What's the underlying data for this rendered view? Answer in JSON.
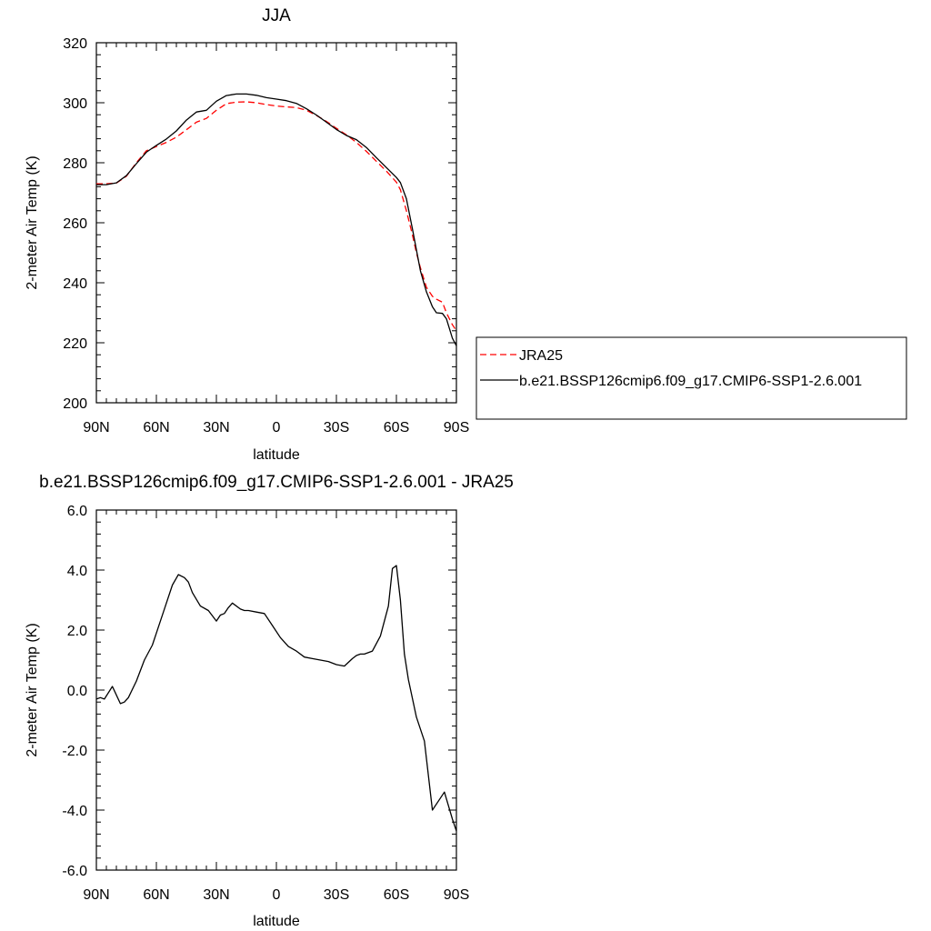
{
  "chart_data": [
    {
      "type": "line",
      "title": "JJA",
      "xlabel": "latitude",
      "ylabel": "2-meter Air Temp (K)",
      "xlim": [
        90,
        -90
      ],
      "ylim": [
        200,
        320
      ],
      "x_ticks": [
        90,
        60,
        30,
        0,
        -30,
        -60,
        -90
      ],
      "x_tick_labels": [
        "90N",
        "60N",
        "30N",
        "0",
        "30S",
        "60S",
        "90S"
      ],
      "y_ticks": [
        200,
        220,
        240,
        260,
        280,
        300,
        320
      ],
      "y_tick_labels": [
        "200",
        "220",
        "240",
        "260",
        "280",
        "300",
        "320"
      ],
      "grid": false,
      "legend_position": "outside-right",
      "series": [
        {
          "name": "JRA25",
          "color": "#ff0000",
          "dash": "dashed",
          "x": [
            90,
            85,
            80,
            75,
            70,
            65,
            60,
            55,
            50,
            45,
            40,
            35,
            30,
            25,
            20,
            15,
            10,
            5,
            0,
            -5,
            -10,
            -15,
            -20,
            -25,
            -30,
            -35,
            -40,
            -45,
            -50,
            -55,
            -60,
            -62,
            -65,
            -68,
            -70,
            -72,
            -75,
            -78,
            -80,
            -83,
            -85,
            -88,
            -90
          ],
          "values": [
            273,
            273,
            273.2,
            275.5,
            280,
            284,
            285.4,
            286.8,
            288.5,
            291,
            293.5,
            294.8,
            297.5,
            299.7,
            300.2,
            300.3,
            300,
            299.4,
            298.9,
            298.6,
            298.4,
            297.5,
            295.8,
            293.8,
            291.5,
            289.3,
            286.8,
            283.8,
            280.5,
            277.2,
            273.5,
            271,
            264,
            256,
            250,
            245,
            238.5,
            235.5,
            234.5,
            233.5,
            230,
            226,
            224
          ]
        },
        {
          "name": "b.e21.BSSP126cmip6.f09_g17.CMIP6-SSP1-2.6.001",
          "color": "#000000",
          "dash": "solid",
          "x": [
            90,
            85,
            80,
            75,
            70,
            65,
            60,
            55,
            50,
            45,
            40,
            35,
            30,
            25,
            20,
            15,
            10,
            5,
            0,
            -5,
            -10,
            -15,
            -20,
            -25,
            -30,
            -35,
            -40,
            -45,
            -50,
            -55,
            -60,
            -62,
            -65,
            -68,
            -70,
            -72,
            -75,
            -78,
            -80,
            -83,
            -85,
            -88,
            -90
          ],
          "values": [
            272.7,
            272.7,
            273.3,
            275.7,
            279.7,
            283.5,
            285.8,
            287.9,
            290.6,
            294.2,
            296.9,
            297.5,
            300.5,
            302.4,
            302.9,
            302.9,
            302.5,
            301.7,
            301.2,
            300.7,
            299.8,
            298,
            295.9,
            293.5,
            291.1,
            289.1,
            287.7,
            285.1,
            281.7,
            278.4,
            275.1,
            273.4,
            268,
            258,
            251,
            244,
            237,
            232,
            230,
            229.8,
            228,
            221.5,
            219
          ]
        }
      ]
    },
    {
      "type": "line",
      "title": "b.e21.BSSP126cmip6.f09_g17.CMIP6-SSP1-2.6.001 - JRA25",
      "xlabel": "latitude",
      "ylabel": "2-meter Air Temp (K)",
      "xlim": [
        90,
        -90
      ],
      "ylim": [
        -6,
        6
      ],
      "x_ticks": [
        90,
        60,
        30,
        0,
        -30,
        -60,
        -90
      ],
      "x_tick_labels": [
        "90N",
        "60N",
        "30N",
        "0",
        "30S",
        "60S",
        "90S"
      ],
      "y_ticks": [
        -6,
        -4,
        -2,
        0,
        2,
        4,
        6
      ],
      "y_tick_labels": [
        "-6.0",
        "-4.0",
        "-2.0",
        "0.0",
        "2.0",
        "4.0",
        "6.0"
      ],
      "grid": false,
      "series": [
        {
          "color": "#000000",
          "dash": "solid",
          "x": [
            90,
            88,
            86,
            82,
            78,
            76,
            74,
            70,
            66,
            62,
            60,
            56,
            52,
            49,
            46,
            44,
            42,
            38,
            34,
            30,
            28,
            26,
            24,
            22,
            18,
            16,
            14,
            10,
            6,
            2,
            -2,
            -6,
            -10,
            -14,
            -18,
            -22,
            -26,
            -30,
            -34,
            -38,
            -40,
            -42,
            -44,
            -48,
            -52,
            -56,
            -58,
            -60,
            -62,
            -64,
            -66,
            -70,
            -74,
            -78,
            -82,
            -84,
            -88,
            -90
          ],
          "values": [
            -0.3,
            -0.25,
            -0.3,
            0.12,
            -0.45,
            -0.4,
            -0.25,
            0.3,
            1.0,
            1.5,
            1.9,
            2.7,
            3.5,
            3.85,
            3.75,
            3.6,
            3.25,
            2.8,
            2.65,
            2.3,
            2.5,
            2.55,
            2.75,
            2.9,
            2.7,
            2.65,
            2.65,
            2.6,
            2.55,
            2.15,
            1.75,
            1.45,
            1.3,
            1.1,
            1.05,
            1.0,
            0.95,
            0.85,
            0.8,
            1.05,
            1.15,
            1.2,
            1.2,
            1.3,
            1.8,
            2.8,
            4.05,
            4.15,
            3.0,
            1.2,
            0.35,
            -0.9,
            -1.7,
            -4.0,
            -3.6,
            -3.4,
            -4.3,
            -4.7
          ]
        }
      ]
    }
  ]
}
